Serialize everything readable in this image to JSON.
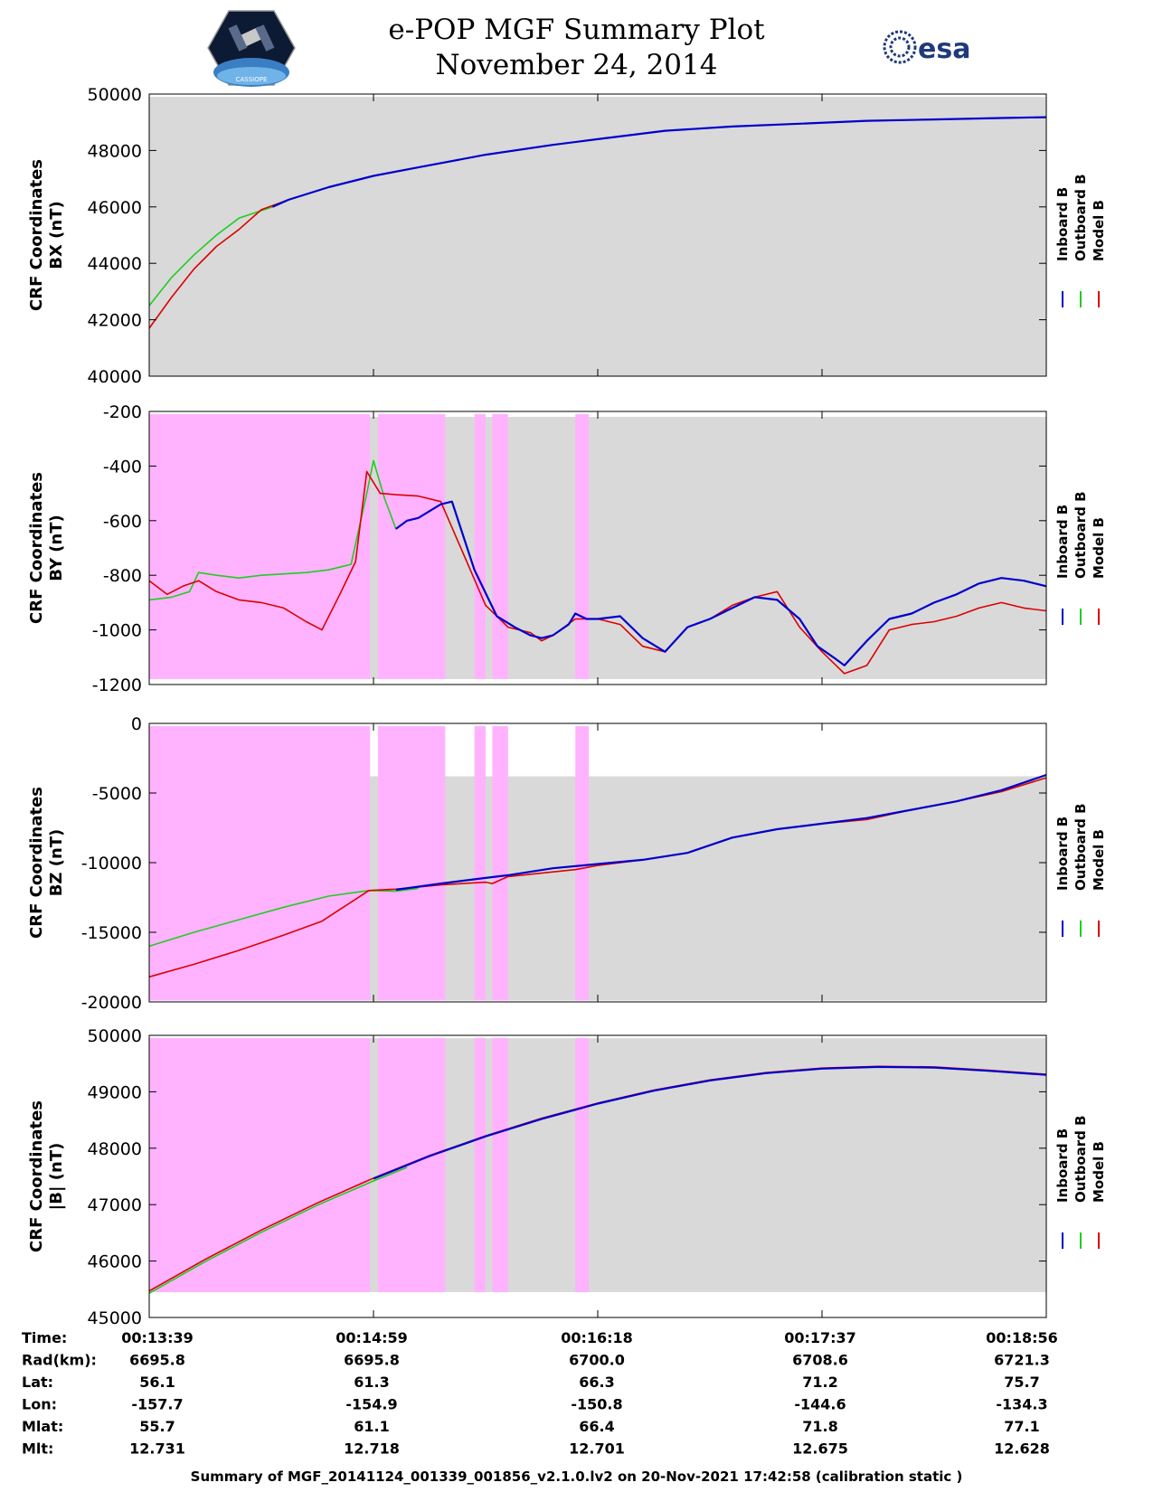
{
  "header": {
    "title": "e-POP MGF Summary Plot",
    "date": "November 24, 2014",
    "esa_logo_text": "esa",
    "mission_logo_text": "CASSIOPE"
  },
  "colors": {
    "plot_bg": "#d9d9d9",
    "flag_fill": "#ffb3ff",
    "inboard": "#0000cc",
    "outboard": "#22cc22",
    "model": "#dd0000"
  },
  "legend": [
    "Inboard B",
    "Outboard B",
    "Model B"
  ],
  "footer": "Summary of MGF_20141124_001339_001856_v2.1.0.lv2 on 20-Nov-2021 17:42:58 (calibration static )",
  "chart_data": {
    "type": "line",
    "x_time_ticks": [
      "00:13:39",
      "00:14:59",
      "00:16:18",
      "00:17:37",
      "00:18:56"
    ],
    "info_table": {
      "row_labels": [
        "Time:",
        "Rad(km):",
        "Lat:",
        "Lon:",
        "Mlat:",
        "Mlt:"
      ],
      "columns": [
        [
          "00:13:39",
          "6695.8",
          "56.1",
          "-157.7",
          "55.7",
          "12.731"
        ],
        [
          "00:14:59",
          "6695.8",
          "61.3",
          "-154.9",
          "61.1",
          "12.718"
        ],
        [
          "00:16:18",
          "6700.0",
          "66.3",
          "-150.8",
          "66.4",
          "12.701"
        ],
        [
          "00:17:37",
          "6708.6",
          "71.2",
          "-144.6",
          "71.8",
          "12.675"
        ],
        [
          "00:18:56",
          "6721.3",
          "75.7",
          "-134.3",
          "77.1",
          "12.628"
        ]
      ]
    },
    "panels": [
      {
        "ylabel_line1": "CRF Coordinates",
        "ylabel_line2": "BX (nT)",
        "ylim": [
          40000,
          50000
        ],
        "yticks": [
          40000,
          42000,
          44000,
          46000,
          48000,
          50000
        ],
        "bg_ylim": [
          40000,
          49900
        ],
        "flags": [],
        "series": [
          {
            "name": "Outboard B",
            "x": [
              0,
              0.1,
              0.2,
              0.3,
              0.4,
              0.55,
              0.62
            ],
            "y": [
              42500,
              43500,
              44300,
              45000,
              45600,
              46000,
              46250
            ]
          },
          {
            "name": "Model B",
            "x": [
              0,
              0.1,
              0.2,
              0.3,
              0.4,
              0.5,
              0.62
            ],
            "y": [
              41700,
              42800,
              43800,
              44600,
              45200,
              45900,
              46250
            ]
          },
          {
            "name": "Inboard B",
            "x": [
              0.55,
              0.62,
              0.8,
              1.0,
              1.2,
              1.5,
              1.8,
              2.0,
              2.3,
              2.6,
              2.9,
              3.2,
              3.5,
              3.8,
              4.0
            ],
            "y": [
              46000,
              46250,
              46700,
              47100,
              47400,
              47850,
              48200,
              48400,
              48700,
              48850,
              48950,
              49050,
              49100,
              49150,
              49180
            ]
          }
        ]
      },
      {
        "ylabel_line1": "CRF Coordinates",
        "ylabel_line2": "BY (nT)",
        "ylim": [
          -1200,
          -200
        ],
        "yticks": [
          -1200,
          -1000,
          -800,
          -600,
          -400,
          -200
        ],
        "bg_ylim": [
          -1180,
          -220
        ],
        "flags": [
          [
            0,
            0.985
          ],
          [
            1.02,
            1.32
          ],
          [
            1.45,
            1.5
          ],
          [
            1.53,
            1.6
          ],
          [
            1.9,
            1.96
          ]
        ],
        "series": [
          {
            "name": "Outboard B",
            "x": [
              0,
              0.1,
              0.18,
              0.22,
              0.3,
              0.4,
              0.5,
              0.6,
              0.7,
              0.8,
              0.9,
              0.97,
              1.0,
              1.05,
              1.1,
              1.15
            ],
            "y": [
              -890,
              -880,
              -860,
              -790,
              -800,
              -810,
              -800,
              -795,
              -790,
              -780,
              -760,
              -500,
              -380,
              -520,
              -630,
              -600
            ]
          },
          {
            "name": "Model B",
            "x": [
              0,
              0.08,
              0.15,
              0.22,
              0.3,
              0.4,
              0.5,
              0.6,
              0.7,
              0.77,
              0.85,
              0.92,
              0.97,
              1.03,
              1.1,
              1.2,
              1.3,
              1.4,
              1.5,
              1.6,
              1.7,
              1.75,
              1.8,
              1.9,
              2.0,
              2.1,
              2.2,
              2.3,
              2.4,
              2.5,
              2.6,
              2.7,
              2.8,
              2.9,
              3.0,
              3.1,
              3.2,
              3.3,
              3.4,
              3.5,
              3.6,
              3.7,
              3.8,
              3.9,
              4.0
            ],
            "y": [
              -820,
              -870,
              -840,
              -820,
              -860,
              -890,
              -900,
              -920,
              -970,
              -1000,
              -870,
              -750,
              -420,
              -500,
              -505,
              -510,
              -530,
              -720,
              -910,
              -990,
              -1010,
              -1040,
              -1020,
              -960,
              -960,
              -980,
              -1060,
              -1080,
              -990,
              -960,
              -910,
              -880,
              -860,
              -990,
              -1080,
              -1160,
              -1130,
              -1000,
              -980,
              -970,
              -950,
              -920,
              -900,
              -920,
              -930
            ]
          },
          {
            "name": "Inboard B",
            "x": [
              1.1,
              1.15,
              1.2,
              1.3,
              1.35,
              1.45,
              1.55,
              1.63,
              1.7,
              1.75,
              1.8,
              1.87,
              1.9,
              1.95,
              2.0,
              2.1,
              2.2,
              2.3,
              2.4,
              2.5,
              2.6,
              2.7,
              2.8,
              2.9,
              2.98,
              3.05,
              3.1,
              3.2,
              3.3,
              3.4,
              3.5,
              3.6,
              3.7,
              3.8,
              3.9,
              4.0
            ],
            "y": [
              -630,
              -600,
              -590,
              -540,
              -530,
              -780,
              -950,
              -990,
              -1020,
              -1030,
              -1020,
              -980,
              -940,
              -960,
              -960,
              -950,
              -1030,
              -1080,
              -990,
              -960,
              -920,
              -880,
              -890,
              -960,
              -1060,
              -1100,
              -1130,
              -1040,
              -960,
              -940,
              -900,
              -870,
              -830,
              -810,
              -820,
              -840
            ]
          }
        ]
      },
      {
        "ylabel_line1": "CRF Coordinates",
        "ylabel_line2": "BZ (nT)",
        "ylim": [
          -20000,
          0
        ],
        "yticks": [
          -20000,
          -15000,
          -10000,
          -5000,
          0
        ],
        "bg_ylim": [
          -19900,
          -3800
        ],
        "flags": [
          [
            0,
            0.985
          ],
          [
            1.02,
            1.32
          ],
          [
            1.45,
            1.5
          ],
          [
            1.53,
            1.6
          ],
          [
            1.9,
            1.96
          ]
        ],
        "series": [
          {
            "name": "Outboard B",
            "x": [
              0,
              0.2,
              0.4,
              0.6,
              0.8,
              0.98,
              1.1,
              1.2
            ],
            "y": [
              -16000,
              -15000,
              -14100,
              -13200,
              -12400,
              -12000,
              -12050,
              -11850
            ]
          },
          {
            "name": "Model B",
            "x": [
              0,
              0.2,
              0.4,
              0.6,
              0.77,
              0.98,
              1.1,
              1.3,
              1.5,
              1.53,
              1.6,
              1.9,
              2.0,
              2.2,
              2.4,
              2.6,
              2.8,
              3.0,
              3.2,
              3.4,
              3.6,
              3.8,
              4.0
            ],
            "y": [
              -18200,
              -17300,
              -16300,
              -15200,
              -14200,
              -12000,
              -11900,
              -11600,
              -11400,
              -11500,
              -11000,
              -10500,
              -10200,
              -9800,
              -9300,
              -8200,
              -7600,
              -7200,
              -6900,
              -6200,
              -5600,
              -4900,
              -3900
            ]
          },
          {
            "name": "Inboard B",
            "x": [
              1.1,
              1.3,
              1.5,
              1.6,
              1.8,
              2.0,
              2.2,
              2.4,
              2.6,
              2.8,
              3.0,
              3.2,
              3.4,
              3.6,
              3.8,
              4.0
            ],
            "y": [
              -11950,
              -11500,
              -11100,
              -10900,
              -10400,
              -10100,
              -9800,
              -9300,
              -8200,
              -7600,
              -7200,
              -6800,
              -6200,
              -5600,
              -4800,
              -3700
            ]
          }
        ]
      },
      {
        "ylabel_line1": "CRF Coordinates",
        "ylabel_line2": "|B| (nT)",
        "ylim": [
          45000,
          50000
        ],
        "yticks": [
          45000,
          46000,
          47000,
          48000,
          49000,
          50000
        ],
        "bg_ylim": [
          45450,
          49950
        ],
        "flags": [
          [
            0,
            0.985
          ],
          [
            1.02,
            1.32
          ],
          [
            1.45,
            1.5
          ],
          [
            1.53,
            1.6
          ],
          [
            1.9,
            1.96
          ]
        ],
        "series": [
          {
            "name": "Outboard B",
            "x": [
              0,
              0.25,
              0.5,
              0.75,
              1.0,
              1.15
            ],
            "y": [
              45430,
              45990,
              46510,
              46990,
              47420,
              47660
            ]
          },
          {
            "name": "Model B",
            "x": [
              0,
              0.25,
              0.5,
              0.75,
              1.0,
              1.25,
              1.5,
              1.75,
              2.0,
              2.25,
              2.5,
              2.75,
              3.0,
              3.25,
              3.5,
              3.75,
              4.0
            ],
            "y": [
              45470,
              46030,
              46550,
              47030,
              47470,
              47870,
              48220,
              48530,
              48800,
              49030,
              49210,
              49340,
              49420,
              49450,
              49440,
              49380,
              49310
            ]
          },
          {
            "name": "Inboard B",
            "x": [
              1.0,
              1.25,
              1.5,
              1.75,
              2.0,
              2.25,
              2.5,
              2.75,
              3.0,
              3.25,
              3.5,
              3.75,
              4.0
            ],
            "y": [
              47460,
              47860,
              48210,
              48520,
              48790,
              49020,
              49200,
              49330,
              49410,
              49440,
              49430,
              49370,
              49300
            ]
          }
        ]
      }
    ]
  }
}
